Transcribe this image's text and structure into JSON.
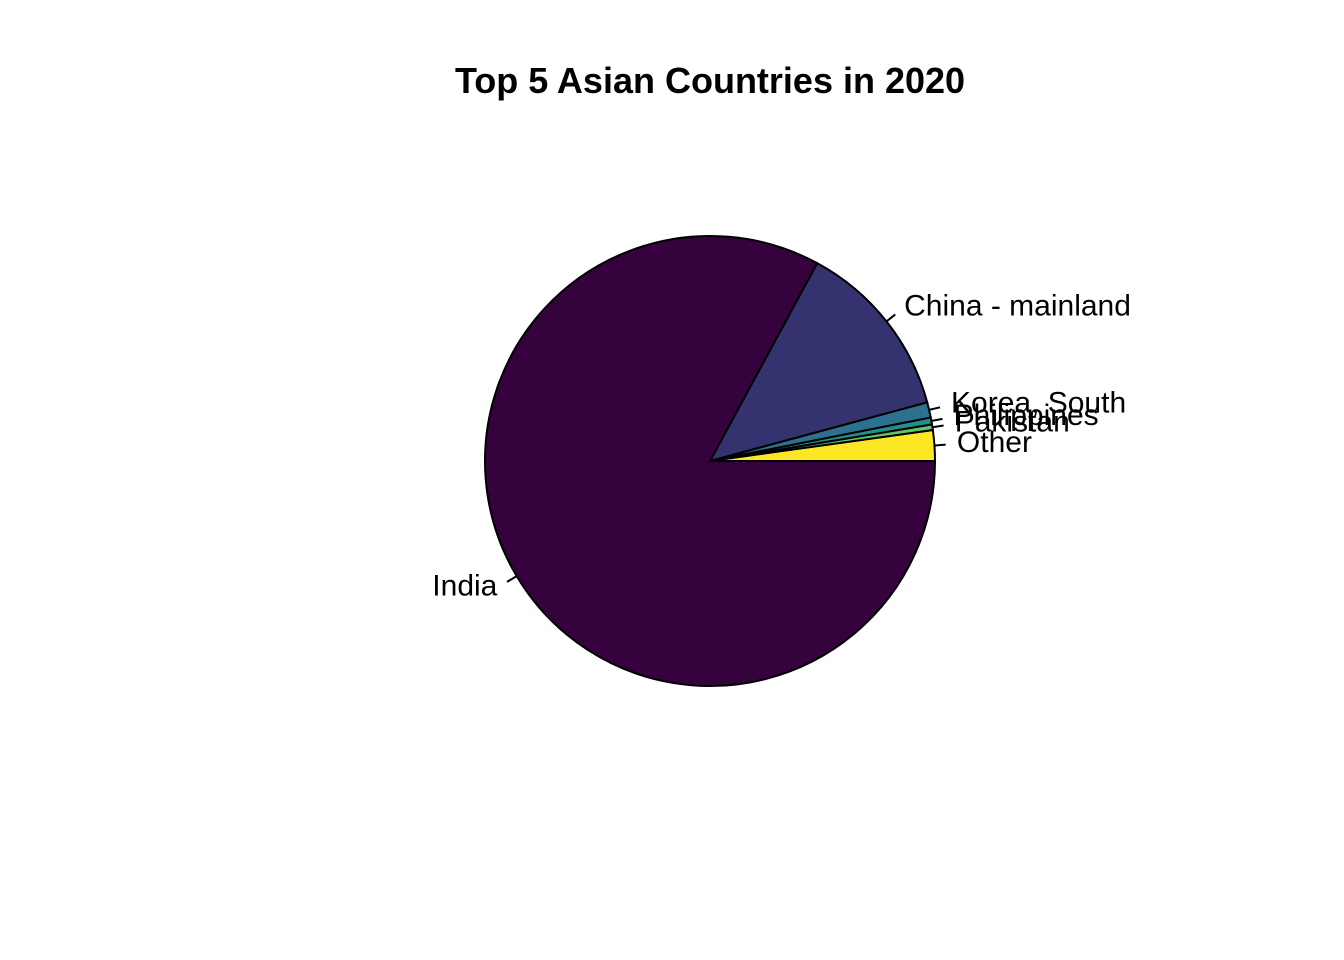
{
  "chart_data": {
    "type": "pie",
    "title": "Top 5 Asian Countries in 2020",
    "start_angle_deg": 0,
    "direction": "counterclockwise",
    "slices": [
      {
        "label": "Other",
        "value": 2.2,
        "color": "#FDE725"
      },
      {
        "label": "Pakistan",
        "value": 0.4,
        "color": "#5DC863"
      },
      {
        "label": "Philippines",
        "value": 0.5,
        "color": "#21908C"
      },
      {
        "label": "Korea, South",
        "value": 1.1,
        "color": "#2C728E"
      },
      {
        "label": "China - mainland",
        "value": 12.9,
        "color": "#34336F"
      },
      {
        "label": "India",
        "value": 82.9,
        "color": "#35023D"
      }
    ]
  }
}
